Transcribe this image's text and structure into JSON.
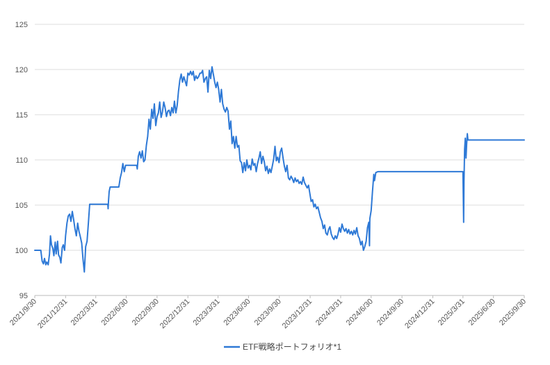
{
  "chart_data": {
    "type": "line",
    "title": "",
    "xlabel": "",
    "ylabel": "",
    "ylim": [
      95,
      125
    ],
    "xlim": [
      "2021/9/30",
      "2025/9/30"
    ],
    "grid": "horizontal",
    "legend_position": "bottom",
    "y_ticks": [
      "95",
      "100",
      "105",
      "110",
      "115",
      "120",
      "125"
    ],
    "x_ticks": [
      "2021/9/30",
      "2021/12/31",
      "2022/3/31",
      "2022/6/30",
      "2022/9/30",
      "2022/12/31",
      "2023/3/31",
      "2023/6/30",
      "2023/9/30",
      "2023/12/31",
      "2024/3/31",
      "2024/6/30",
      "2024/9/30",
      "2024/12/31",
      "2025/3/31",
      "2025/6/30",
      "2025/9/30"
    ],
    "series": [
      {
        "name": "ETF戦略ポートフォリオ*1",
        "color": "#2e79d6",
        "points": [
          [
            "2021-09-30",
            100.0
          ],
          [
            "2021-10-18",
            100.0
          ],
          [
            "2021-10-22",
            98.8
          ],
          [
            "2021-10-26",
            98.5
          ],
          [
            "2021-10-29",
            99.1
          ],
          [
            "2021-11-02",
            98.4
          ],
          [
            "2021-11-05",
            98.7
          ],
          [
            "2021-11-09",
            98.4
          ],
          [
            "2021-11-13",
            99.6
          ],
          [
            "2021-11-16",
            101.6
          ],
          [
            "2021-11-19",
            100.6
          ],
          [
            "2021-11-23",
            100.2
          ],
          [
            "2021-11-26",
            99.4
          ],
          [
            "2021-11-30",
            100.9
          ],
          [
            "2021-12-03",
            99.6
          ],
          [
            "2021-12-07",
            101.0
          ],
          [
            "2021-12-10",
            99.5
          ],
          [
            "2021-12-14",
            99.2
          ],
          [
            "2021-12-17",
            98.6
          ],
          [
            "2021-12-21",
            100.3
          ],
          [
            "2021-12-24",
            100.6
          ],
          [
            "2021-12-28",
            100.0
          ],
          [
            "2021-12-31",
            101.6
          ],
          [
            "2022-01-04",
            103.0
          ],
          [
            "2022-01-08",
            103.8
          ],
          [
            "2022-01-12",
            104.0
          ],
          [
            "2022-01-16",
            103.2
          ],
          [
            "2022-01-20",
            104.3
          ],
          [
            "2022-01-24",
            103.4
          ],
          [
            "2022-01-28",
            102.4
          ],
          [
            "2022-02-01",
            101.6
          ],
          [
            "2022-02-05",
            103.0
          ],
          [
            "2022-02-09",
            102.1
          ],
          [
            "2022-02-13",
            101.5
          ],
          [
            "2022-02-17",
            100.8
          ],
          [
            "2022-02-21",
            99.0
          ],
          [
            "2022-02-25",
            97.6
          ],
          [
            "2022-03-01",
            100.4
          ],
          [
            "2022-03-05",
            101.0
          ],
          [
            "2022-03-09",
            103.0
          ],
          [
            "2022-03-13",
            105.1
          ],
          [
            "2022-03-31",
            105.1
          ],
          [
            "2022-05-06",
            105.1
          ],
          [
            "2022-05-07",
            104.6
          ],
          [
            "2022-05-08",
            105.4
          ],
          [
            "2022-05-10",
            106.5
          ],
          [
            "2022-05-13",
            107.0
          ],
          [
            "2022-05-20",
            107.0
          ],
          [
            "2022-06-08",
            107.0
          ],
          [
            "2022-06-12",
            108.0
          ],
          [
            "2022-06-16",
            108.6
          ],
          [
            "2022-06-20",
            109.6
          ],
          [
            "2022-06-24",
            108.7
          ],
          [
            "2022-06-28",
            109.4
          ],
          [
            "2022-07-31",
            109.4
          ],
          [
            "2022-08-02",
            109.0
          ],
          [
            "2022-08-05",
            110.4
          ],
          [
            "2022-08-09",
            110.9
          ],
          [
            "2022-08-13",
            110.2
          ],
          [
            "2022-08-17",
            111.0
          ],
          [
            "2022-08-21",
            109.8
          ],
          [
            "2022-08-25",
            110.0
          ],
          [
            "2022-08-29",
            111.6
          ],
          [
            "2022-09-02",
            112.6
          ],
          [
            "2022-09-06",
            114.5
          ],
          [
            "2022-09-10",
            113.4
          ],
          [
            "2022-09-14",
            115.6
          ],
          [
            "2022-09-18",
            114.6
          ],
          [
            "2022-09-22",
            116.2
          ],
          [
            "2022-09-26",
            113.8
          ],
          [
            "2022-09-30",
            114.8
          ],
          [
            "2022-10-04",
            115.2
          ],
          [
            "2022-10-08",
            116.4
          ],
          [
            "2022-10-12",
            114.7
          ],
          [
            "2022-10-16",
            115.3
          ],
          [
            "2022-10-20",
            116.4
          ],
          [
            "2022-10-24",
            115.8
          ],
          [
            "2022-10-28",
            114.8
          ],
          [
            "2022-11-01",
            115.4
          ],
          [
            "2022-11-05",
            115.5
          ],
          [
            "2022-11-09",
            114.9
          ],
          [
            "2022-11-13",
            115.8
          ],
          [
            "2022-11-17",
            115.2
          ],
          [
            "2022-11-21",
            116.5
          ],
          [
            "2022-11-25",
            115.2
          ],
          [
            "2022-11-29",
            116.0
          ],
          [
            "2022-12-03",
            117.6
          ],
          [
            "2022-12-07",
            118.8
          ],
          [
            "2022-12-11",
            119.5
          ],
          [
            "2022-12-15",
            118.6
          ],
          [
            "2022-12-19",
            119.2
          ],
          [
            "2022-12-23",
            118.7
          ],
          [
            "2022-12-27",
            118.2
          ],
          [
            "2022-12-31",
            119.6
          ],
          [
            "2023-01-04",
            119.4
          ],
          [
            "2023-01-08",
            119.8
          ],
          [
            "2023-01-12",
            119.4
          ],
          [
            "2023-01-16",
            119.8
          ],
          [
            "2023-01-20",
            118.8
          ],
          [
            "2023-01-24",
            119.3
          ],
          [
            "2023-01-28",
            119.0
          ],
          [
            "2023-02-01",
            119.2
          ],
          [
            "2023-02-05",
            119.6
          ],
          [
            "2023-02-09",
            119.6
          ],
          [
            "2023-02-13",
            119.9
          ],
          [
            "2023-02-17",
            118.6
          ],
          [
            "2023-02-21",
            119.0
          ],
          [
            "2023-02-25",
            119.2
          ],
          [
            "2023-03-01",
            117.5
          ],
          [
            "2023-03-05",
            119.9
          ],
          [
            "2023-03-09",
            119.0
          ],
          [
            "2023-03-13",
            120.3
          ],
          [
            "2023-03-17",
            119.5
          ],
          [
            "2023-03-21",
            118.6
          ],
          [
            "2023-03-25",
            118.0
          ],
          [
            "2023-03-29",
            118.6
          ],
          [
            "2023-04-02",
            117.8
          ],
          [
            "2023-04-06",
            116.4
          ],
          [
            "2023-04-10",
            117.8
          ],
          [
            "2023-04-14",
            116.2
          ],
          [
            "2023-04-18",
            115.6
          ],
          [
            "2023-04-22",
            115.3
          ],
          [
            "2023-04-26",
            115.8
          ],
          [
            "2023-04-30",
            115.4
          ],
          [
            "2023-05-04",
            113.4
          ],
          [
            "2023-05-08",
            114.3
          ],
          [
            "2023-05-12",
            111.8
          ],
          [
            "2023-05-16",
            112.6
          ],
          [
            "2023-05-20",
            111.3
          ],
          [
            "2023-05-24",
            112.6
          ],
          [
            "2023-05-28",
            111.4
          ],
          [
            "2023-06-01",
            111.6
          ],
          [
            "2023-06-05",
            109.9
          ],
          [
            "2023-06-09",
            109.7
          ],
          [
            "2023-06-13",
            108.6
          ],
          [
            "2023-06-17",
            109.7
          ],
          [
            "2023-06-21",
            108.8
          ],
          [
            "2023-06-25",
            110.0
          ],
          [
            "2023-06-29",
            109.1
          ],
          [
            "2023-07-03",
            109.4
          ],
          [
            "2023-07-07",
            108.9
          ],
          [
            "2023-07-11",
            110.1
          ],
          [
            "2023-07-15",
            109.4
          ],
          [
            "2023-07-19",
            109.6
          ],
          [
            "2023-07-23",
            108.7
          ],
          [
            "2023-07-27",
            109.6
          ],
          [
            "2023-07-31",
            110.2
          ],
          [
            "2023-08-04",
            110.9
          ],
          [
            "2023-08-08",
            109.6
          ],
          [
            "2023-08-12",
            110.4
          ],
          [
            "2023-08-16",
            109.8
          ],
          [
            "2023-08-20",
            108.8
          ],
          [
            "2023-08-24",
            109.3
          ],
          [
            "2023-08-28",
            108.5
          ],
          [
            "2023-09-01",
            109.0
          ],
          [
            "2023-09-05",
            108.6
          ],
          [
            "2023-09-09",
            109.3
          ],
          [
            "2023-09-13",
            110.1
          ],
          [
            "2023-09-17",
            111.5
          ],
          [
            "2023-09-21",
            109.9
          ],
          [
            "2023-09-25",
            110.3
          ],
          [
            "2023-09-29",
            109.7
          ],
          [
            "2023-10-03",
            110.9
          ],
          [
            "2023-10-07",
            111.3
          ],
          [
            "2023-10-11",
            110.2
          ],
          [
            "2023-10-15",
            109.3
          ],
          [
            "2023-10-19",
            108.7
          ],
          [
            "2023-10-23",
            109.4
          ],
          [
            "2023-10-27",
            108.0
          ],
          [
            "2023-10-31",
            107.8
          ],
          [
            "2023-11-04",
            108.2
          ],
          [
            "2023-11-08",
            107.9
          ],
          [
            "2023-11-12",
            107.5
          ],
          [
            "2023-11-16",
            108.0
          ],
          [
            "2023-11-20",
            107.6
          ],
          [
            "2023-11-24",
            107.8
          ],
          [
            "2023-11-28",
            107.4
          ],
          [
            "2023-12-02",
            107.6
          ],
          [
            "2023-12-06",
            107.3
          ],
          [
            "2023-12-10",
            108.1
          ],
          [
            "2023-12-14",
            107.5
          ],
          [
            "2023-12-18",
            107.2
          ],
          [
            "2023-12-22",
            106.9
          ],
          [
            "2023-12-26",
            107.2
          ],
          [
            "2023-12-30",
            106.3
          ],
          [
            "2024-01-03",
            105.4
          ],
          [
            "2024-01-07",
            105.6
          ],
          [
            "2024-01-11",
            104.8
          ],
          [
            "2024-01-15",
            105.1
          ],
          [
            "2024-01-19",
            104.6
          ],
          [
            "2024-01-23",
            104.8
          ],
          [
            "2024-01-27",
            104.2
          ],
          [
            "2024-01-31",
            103.6
          ],
          [
            "2024-02-04",
            103.2
          ],
          [
            "2024-02-08",
            102.4
          ],
          [
            "2024-02-12",
            102.8
          ],
          [
            "2024-02-16",
            101.9
          ],
          [
            "2024-02-20",
            101.7
          ],
          [
            "2024-02-24",
            102.3
          ],
          [
            "2024-02-28",
            102.6
          ],
          [
            "2024-03-03",
            101.8
          ],
          [
            "2024-03-07",
            101.4
          ],
          [
            "2024-03-11",
            101.2
          ],
          [
            "2024-03-15",
            101.6
          ],
          [
            "2024-03-19",
            101.3
          ],
          [
            "2024-03-23",
            101.8
          ],
          [
            "2024-03-27",
            102.5
          ],
          [
            "2024-03-31",
            102.0
          ],
          [
            "2024-04-04",
            102.9
          ],
          [
            "2024-04-08",
            102.4
          ],
          [
            "2024-04-12",
            102.1
          ],
          [
            "2024-04-16",
            102.4
          ],
          [
            "2024-04-20",
            101.9
          ],
          [
            "2024-04-24",
            102.3
          ],
          [
            "2024-04-28",
            101.8
          ],
          [
            "2024-05-02",
            102.1
          ],
          [
            "2024-05-06",
            101.7
          ],
          [
            "2024-05-10",
            102.2
          ],
          [
            "2024-05-14",
            101.8
          ],
          [
            "2024-05-18",
            102.5
          ],
          [
            "2024-05-22",
            101.6
          ],
          [
            "2024-05-26",
            101.3
          ],
          [
            "2024-05-30",
            100.6
          ],
          [
            "2024-06-03",
            101.0
          ],
          [
            "2024-06-07",
            100.0
          ],
          [
            "2024-06-11",
            100.4
          ],
          [
            "2024-06-15",
            101.0
          ],
          [
            "2024-06-19",
            102.5
          ],
          [
            "2024-06-23",
            103.1
          ],
          [
            "2024-06-25",
            100.5
          ],
          [
            "2024-06-26",
            103.5
          ],
          [
            "2024-06-30",
            104.4
          ],
          [
            "2024-07-04",
            106.5
          ],
          [
            "2024-07-08",
            108.4
          ],
          [
            "2024-07-10",
            107.7
          ],
          [
            "2024-07-14",
            108.6
          ],
          [
            "2024-07-20",
            108.7
          ],
          [
            "2025-03-31",
            108.7
          ],
          [
            "2025-04-02",
            103.1
          ],
          [
            "2025-04-03",
            107.6
          ],
          [
            "2025-04-05",
            111.2
          ],
          [
            "2025-04-07",
            112.4
          ],
          [
            "2025-04-09",
            110.2
          ],
          [
            "2025-04-11",
            111.7
          ],
          [
            "2025-04-13",
            112.9
          ],
          [
            "2025-04-15",
            112.2
          ],
          [
            "2025-09-30",
            112.2
          ]
        ]
      }
    ]
  }
}
